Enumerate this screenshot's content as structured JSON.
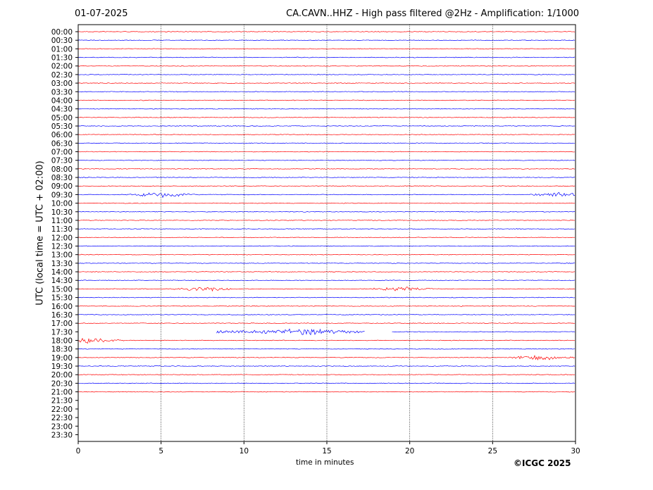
{
  "header": {
    "date": "01-07-2025",
    "title": "CA.CAVN..HHZ - High pass filtered @2Hz - Amplification: 1/1000"
  },
  "footer": {
    "copyright": "©ICGC 2025"
  },
  "chart_data": {
    "type": "line",
    "title": "CA.CAVN..HHZ - High pass filtered @2Hz - Amplification: 1/1000",
    "xlabel": "time in minutes",
    "ylabel": "UTC (local time = UTC + 02:00)",
    "xlim": [
      0,
      30
    ],
    "xticks": [
      "0",
      "5",
      "10",
      "15",
      "20",
      "25",
      "30"
    ],
    "grid": "vertical dotted lines at x = 5, 10, 15, 20, 25",
    "row_labels": [
      "00:00",
      "00:30",
      "01:00",
      "01:30",
      "02:00",
      "02:30",
      "03:00",
      "03:30",
      "04:00",
      "04:30",
      "05:00",
      "05:30",
      "06:00",
      "06:30",
      "07:00",
      "07:30",
      "08:00",
      "08:30",
      "09:00",
      "09:30",
      "10:00",
      "10:30",
      "11:00",
      "11:30",
      "12:00",
      "12:30",
      "13:00",
      "13:30",
      "14:00",
      "14:30",
      "15:00",
      "15:30",
      "16:00",
      "16:30",
      "17:00",
      "17:30",
      "18:00",
      "18:30",
      "19:00",
      "19:30",
      "20:00",
      "20:30",
      "21:00",
      "21:30",
      "22:00",
      "22:30",
      "23:00",
      "23:30"
    ],
    "trace_colors": [
      "#ff0000",
      "#0000ff"
    ],
    "recorded_rows": 43,
    "events": [
      {
        "row": "09:30",
        "x": 5.0
      },
      {
        "row": "09:30",
        "x": 29.2
      },
      {
        "row": "15:00",
        "x": 7.5
      },
      {
        "row": "15:00",
        "x": 19.5
      },
      {
        "row": "17:30",
        "x": 14.0
      },
      {
        "row": "18:00",
        "x": 0.7
      },
      {
        "row": "19:00",
        "x": 28.0
      }
    ],
    "gaps": [
      {
        "row": "17:30",
        "x": [
          0,
          8.3
        ]
      },
      {
        "row": "17:30",
        "x": [
          17.3,
          18.9
        ]
      }
    ]
  }
}
